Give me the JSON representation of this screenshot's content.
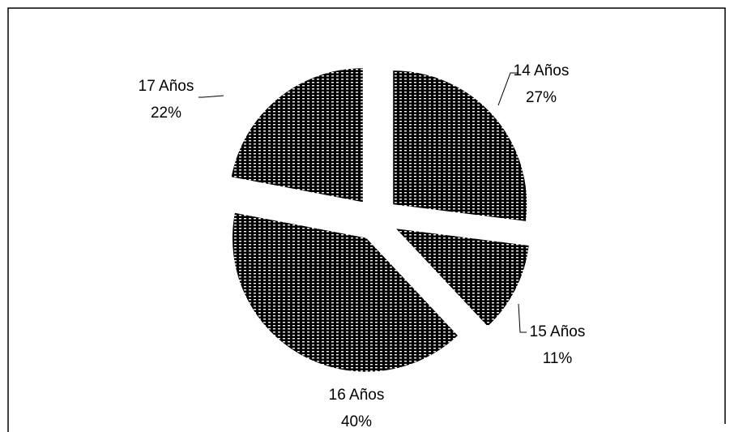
{
  "chart_data": {
    "type": "pie",
    "categories": [
      "14 Años",
      "15 Años",
      "16 Años",
      "17 Años"
    ],
    "values": [
      27,
      11,
      40,
      22
    ],
    "value_labels": [
      "27%",
      "11%",
      "40%",
      "22%"
    ],
    "color": "#000000"
  }
}
